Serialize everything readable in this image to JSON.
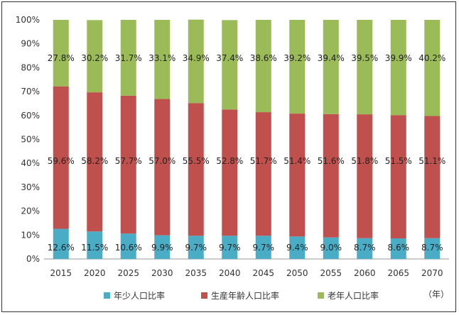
{
  "chart_data": {
    "type": "bar",
    "stacked": true,
    "normalized": true,
    "categories": [
      "2015",
      "2020",
      "2025",
      "2030",
      "2035",
      "2040",
      "2045",
      "2050",
      "2055",
      "2060",
      "2065",
      "2070"
    ],
    "series": [
      {
        "name": "年少人口比率",
        "color": "#4bacc6",
        "values": [
          12.6,
          11.5,
          10.6,
          9.9,
          9.7,
          9.7,
          9.7,
          9.4,
          9.0,
          8.7,
          8.6,
          8.7
        ]
      },
      {
        "name": "生産年齢人口比率",
        "color": "#c0504d",
        "values": [
          59.6,
          58.2,
          57.7,
          57.0,
          55.5,
          52.8,
          51.7,
          51.4,
          51.6,
          51.8,
          51.5,
          51.1
        ]
      },
      {
        "name": "老年人口比率",
        "color": "#9bbb59",
        "values": [
          27.8,
          30.2,
          31.7,
          33.1,
          34.9,
          37.4,
          38.6,
          39.2,
          39.4,
          39.5,
          39.9,
          40.2
        ]
      }
    ],
    "yticks": [
      "0%",
      "10%",
      "20%",
      "30%",
      "40%",
      "50%",
      "60%",
      "70%",
      "80%",
      "90%",
      "100%"
    ],
    "ylim": [
      0,
      100
    ],
    "xunit": "（年）",
    "legend_position": "bottom",
    "grid": false
  }
}
